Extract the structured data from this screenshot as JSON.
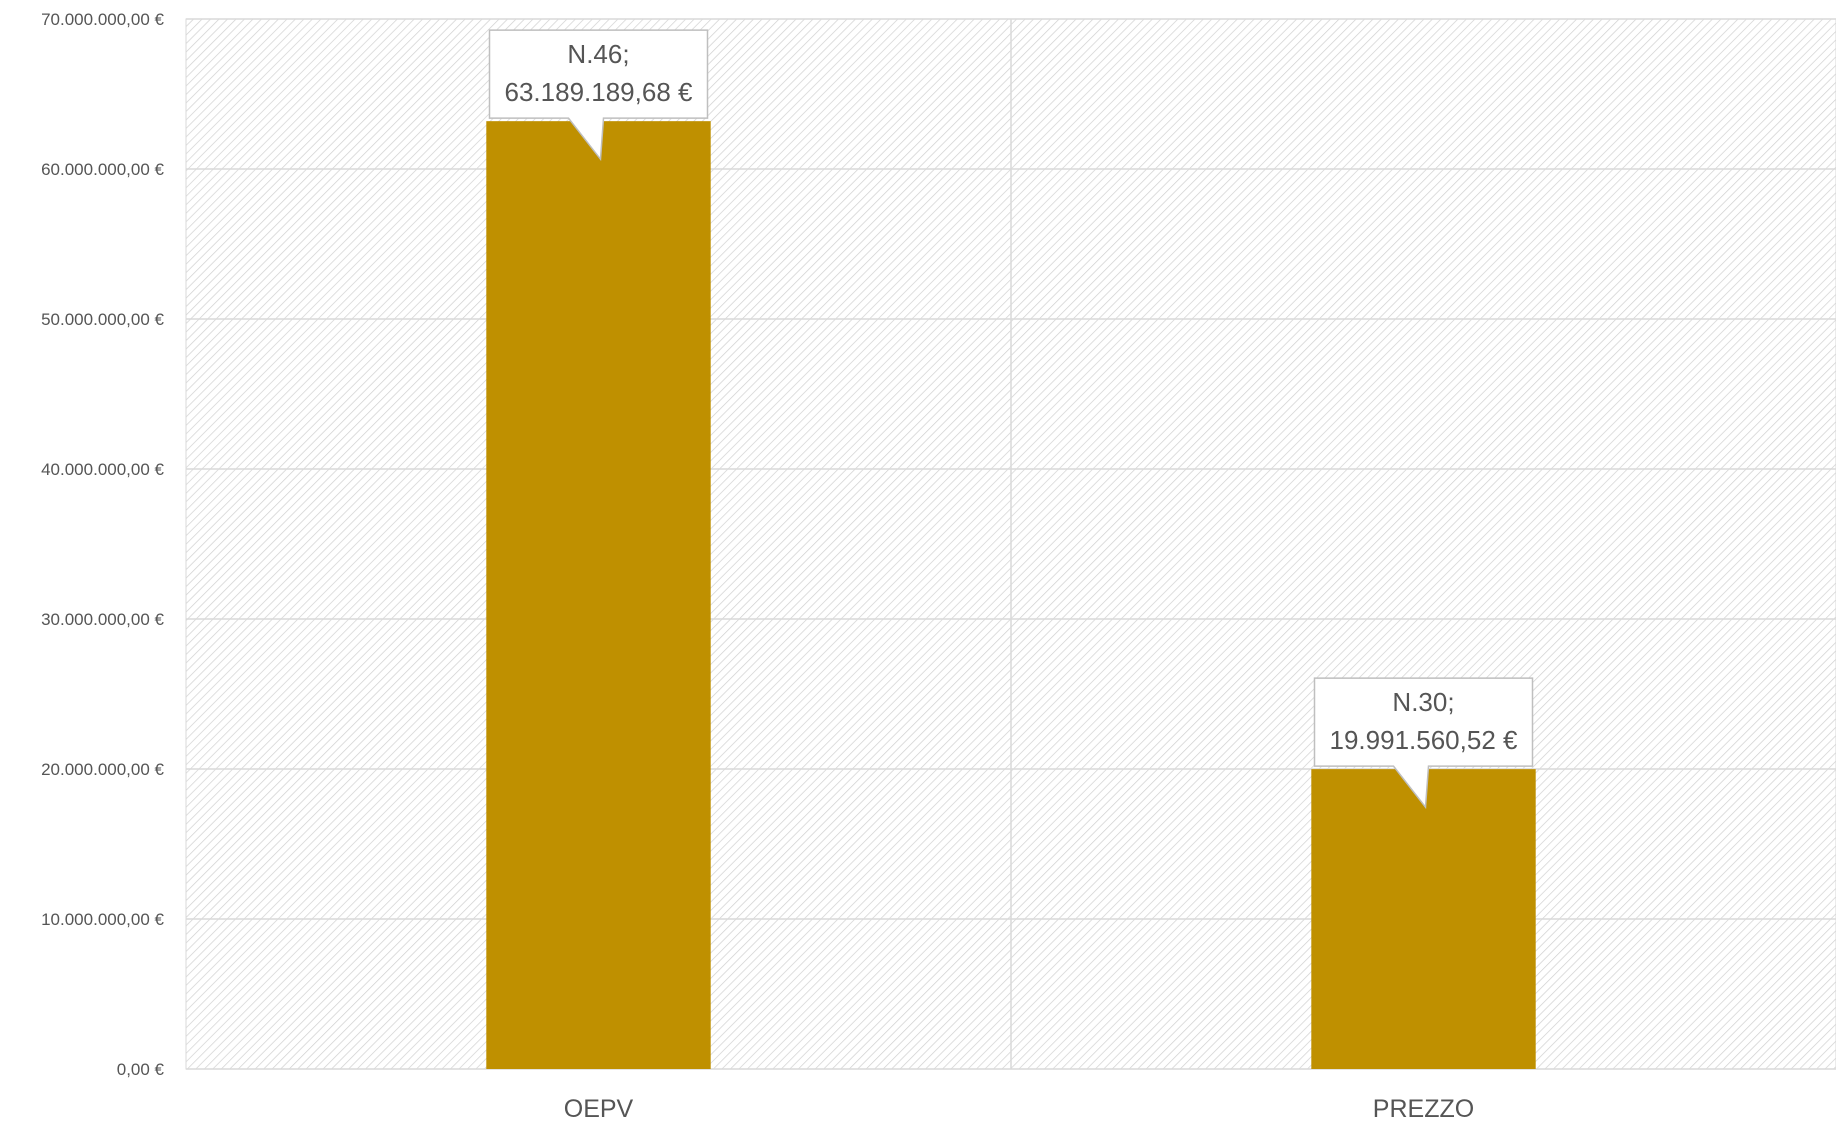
{
  "chart_data": {
    "type": "bar",
    "title": "",
    "xlabel": "",
    "ylabel": "",
    "categories": [
      "OEPV",
      "PREZZO"
    ],
    "values": [
      63189189.68,
      19991560.52
    ],
    "data_labels": [
      {
        "line1": "N.46;",
        "line2": "63.189.189,68 €"
      },
      {
        "line1": "N.30;",
        "line2": "19.991.560,52 €"
      }
    ],
    "ylim": [
      0,
      70000000
    ],
    "y_ticks": [
      0,
      10000000,
      20000000,
      30000000,
      40000000,
      50000000,
      60000000,
      70000000
    ],
    "y_tick_labels": [
      "0,00 €",
      "10.000.000,00 €",
      "20.000.000,00 €",
      "30.000.000,00 €",
      "40.000.000,00 €",
      "50.000.000,00 €",
      "60.000.000,00 €",
      "70.000.000,00 €"
    ],
    "grid": true,
    "legend": "none",
    "colors": {
      "bar": "#BF9000",
      "grid": "#D9D9D9",
      "hatch": "#D0D0D0",
      "text": "#555555",
      "callout_fill": "#FFFFFF",
      "callout_stroke": "#BFBFBF"
    }
  }
}
